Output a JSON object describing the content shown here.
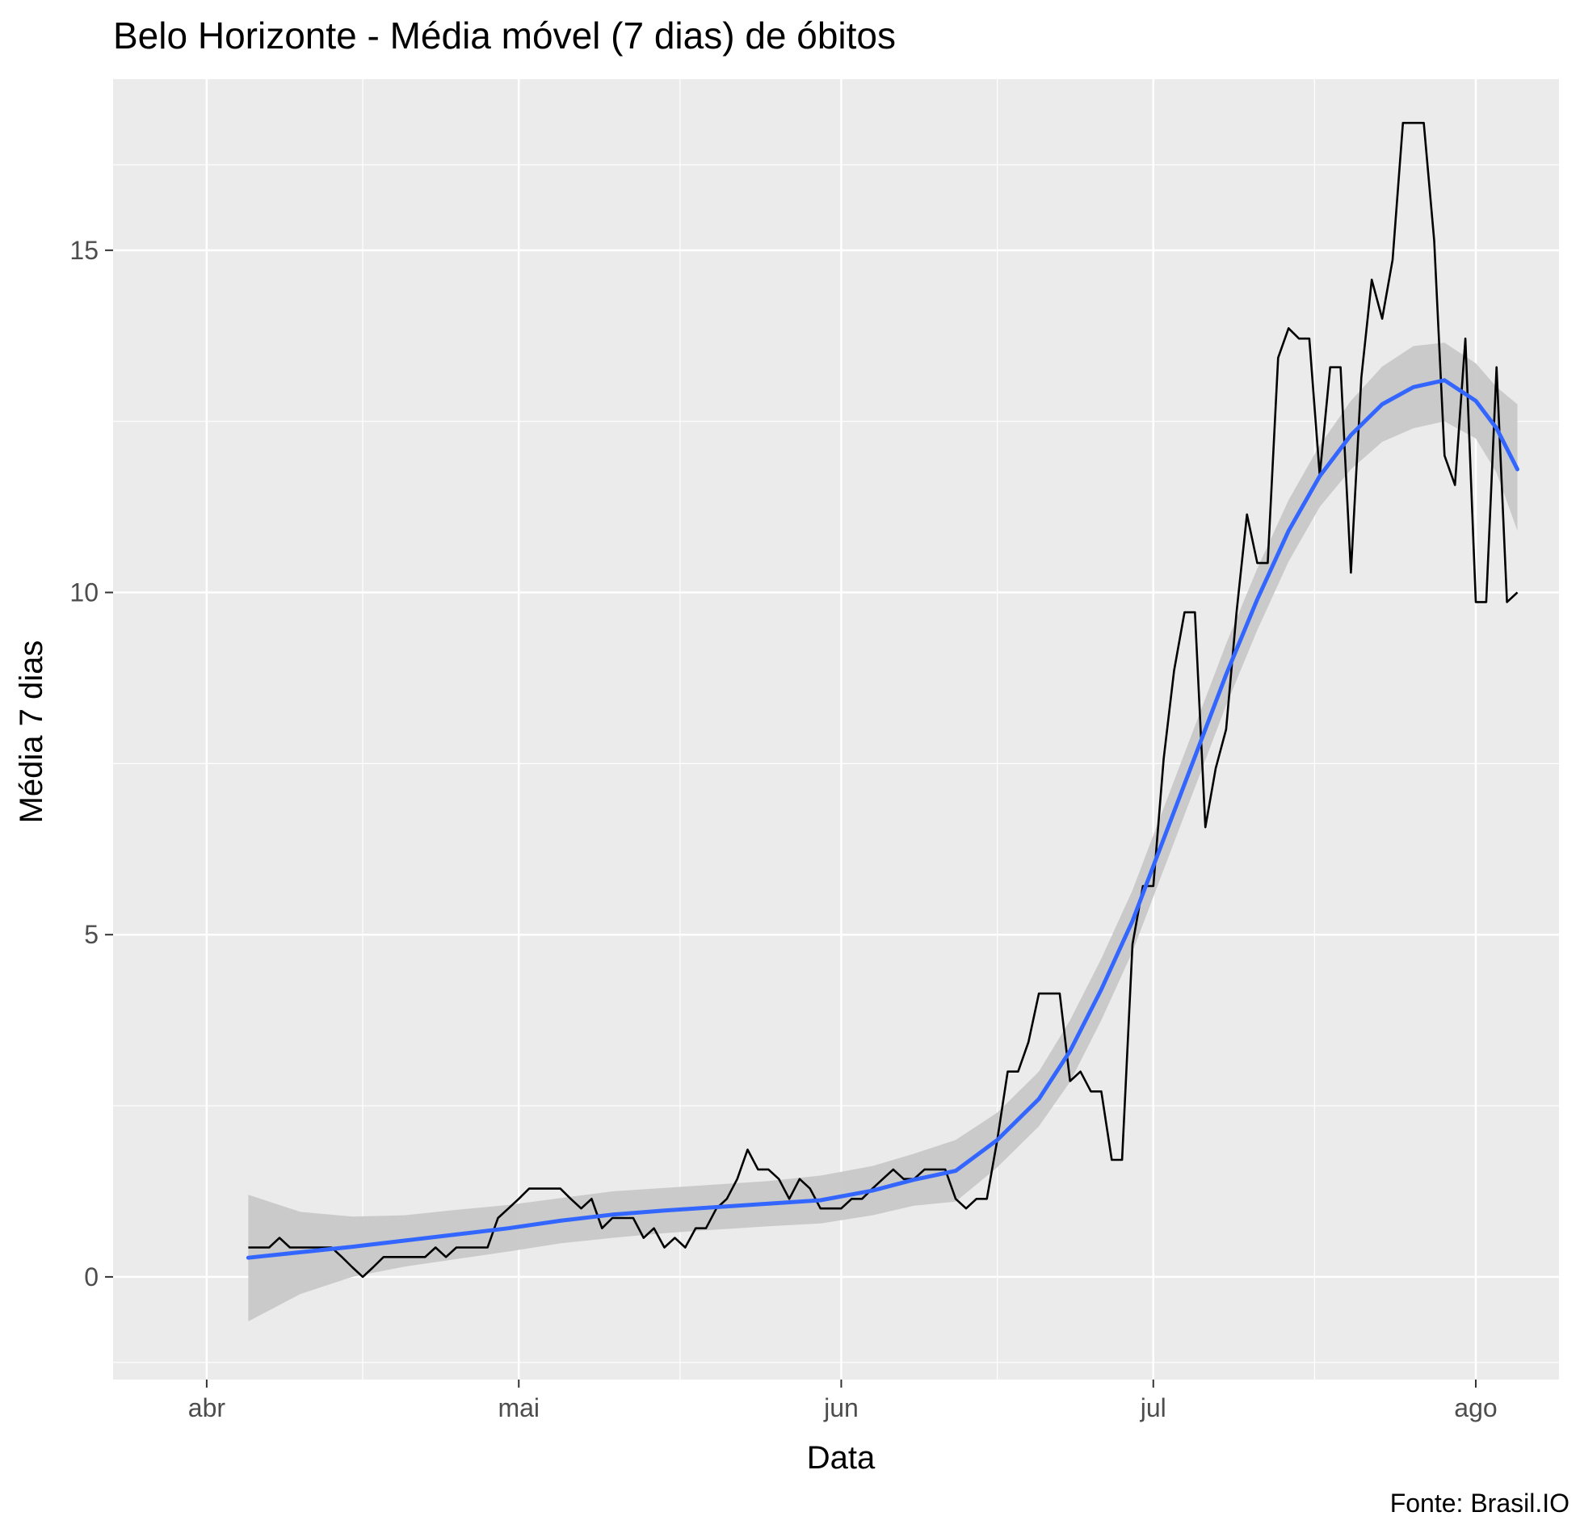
{
  "chart_data": {
    "type": "line",
    "title": "Belo Horizonte - Média móvel (7 dias) de óbitos",
    "xlabel": "Data",
    "ylabel": "Média 7 dias",
    "caption": "Fonte: Brasil.IO",
    "x_ticks": [
      {
        "date": "2020-04-01",
        "label": "abr"
      },
      {
        "date": "2020-05-01",
        "label": "mai"
      },
      {
        "date": "2020-06-01",
        "label": "jun"
      },
      {
        "date": "2020-07-01",
        "label": "jul"
      },
      {
        "date": "2020-08-01",
        "label": "ago"
      }
    ],
    "y_ticks": [
      0,
      5,
      10,
      15
    ],
    "xlim": [
      "2020-03-23",
      "2020-08-09"
    ],
    "ylim": [
      -1.5,
      17.5
    ],
    "grid": true,
    "colors": {
      "panel_background": "#EBEBEB",
      "grid": "#FFFFFF",
      "series_line": "#000000",
      "smooth_line": "#3366FF",
      "ribbon": "#C8C8C8"
    },
    "series": [
      {
        "name": "",
        "points": [
          [
            "2020-04-05",
            0.43
          ],
          [
            "2020-04-06",
            0.43
          ],
          [
            "2020-04-07",
            0.43
          ],
          [
            "2020-04-08",
            0.57
          ],
          [
            "2020-04-09",
            0.43
          ],
          [
            "2020-04-10",
            0.43
          ],
          [
            "2020-04-11",
            0.43
          ],
          [
            "2020-04-12",
            0.43
          ],
          [
            "2020-04-13",
            0.43
          ],
          [
            "2020-04-14",
            0.29
          ],
          [
            "2020-04-15",
            0.14
          ],
          [
            "2020-04-16",
            0.0
          ],
          [
            "2020-04-17",
            0.14
          ],
          [
            "2020-04-18",
            0.29
          ],
          [
            "2020-04-19",
            0.29
          ],
          [
            "2020-04-20",
            0.29
          ],
          [
            "2020-04-21",
            0.29
          ],
          [
            "2020-04-22",
            0.29
          ],
          [
            "2020-04-23",
            0.43
          ],
          [
            "2020-04-24",
            0.29
          ],
          [
            "2020-04-25",
            0.43
          ],
          [
            "2020-04-26",
            0.43
          ],
          [
            "2020-04-27",
            0.43
          ],
          [
            "2020-04-28",
            0.43
          ],
          [
            "2020-04-29",
            0.86
          ],
          [
            "2020-04-30",
            1.0
          ],
          [
            "2020-05-01",
            1.14
          ],
          [
            "2020-05-02",
            1.29
          ],
          [
            "2020-05-03",
            1.29
          ],
          [
            "2020-05-04",
            1.29
          ],
          [
            "2020-05-05",
            1.29
          ],
          [
            "2020-05-06",
            1.14
          ],
          [
            "2020-05-07",
            1.0
          ],
          [
            "2020-05-08",
            1.14
          ],
          [
            "2020-05-09",
            0.71
          ],
          [
            "2020-05-10",
            0.86
          ],
          [
            "2020-05-11",
            0.86
          ],
          [
            "2020-05-12",
            0.86
          ],
          [
            "2020-05-13",
            0.57
          ],
          [
            "2020-05-14",
            0.71
          ],
          [
            "2020-05-15",
            0.43
          ],
          [
            "2020-05-16",
            0.57
          ],
          [
            "2020-05-17",
            0.43
          ],
          [
            "2020-05-18",
            0.71
          ],
          [
            "2020-05-19",
            0.71
          ],
          [
            "2020-05-20",
            1.0
          ],
          [
            "2020-05-21",
            1.14
          ],
          [
            "2020-05-22",
            1.43
          ],
          [
            "2020-05-23",
            1.86
          ],
          [
            "2020-05-24",
            1.57
          ],
          [
            "2020-05-25",
            1.57
          ],
          [
            "2020-05-26",
            1.43
          ],
          [
            "2020-05-27",
            1.14
          ],
          [
            "2020-05-28",
            1.43
          ],
          [
            "2020-05-29",
            1.29
          ],
          [
            "2020-05-30",
            1.0
          ],
          [
            "2020-05-31",
            1.0
          ],
          [
            "2020-06-01",
            1.0
          ],
          [
            "2020-06-02",
            1.14
          ],
          [
            "2020-06-03",
            1.14
          ],
          [
            "2020-06-04",
            1.29
          ],
          [
            "2020-06-05",
            1.43
          ],
          [
            "2020-06-06",
            1.57
          ],
          [
            "2020-06-07",
            1.43
          ],
          [
            "2020-06-08",
            1.43
          ],
          [
            "2020-06-09",
            1.57
          ],
          [
            "2020-06-10",
            1.57
          ],
          [
            "2020-06-11",
            1.57
          ],
          [
            "2020-06-12",
            1.14
          ],
          [
            "2020-06-13",
            1.0
          ],
          [
            "2020-06-14",
            1.14
          ],
          [
            "2020-06-15",
            1.14
          ],
          [
            "2020-06-16",
            2.0
          ],
          [
            "2020-06-17",
            3.0
          ],
          [
            "2020-06-18",
            3.0
          ],
          [
            "2020-06-19",
            3.43
          ],
          [
            "2020-06-20",
            4.14
          ],
          [
            "2020-06-21",
            4.14
          ],
          [
            "2020-06-22",
            4.14
          ],
          [
            "2020-06-23",
            2.86
          ],
          [
            "2020-06-24",
            3.0
          ],
          [
            "2020-06-25",
            2.71
          ],
          [
            "2020-06-26",
            2.71
          ],
          [
            "2020-06-27",
            1.71
          ],
          [
            "2020-06-28",
            1.71
          ],
          [
            "2020-06-29",
            4.86
          ],
          [
            "2020-06-30",
            5.71
          ],
          [
            "2020-07-01",
            5.71
          ],
          [
            "2020-07-02",
            7.57
          ],
          [
            "2020-07-03",
            8.86
          ],
          [
            "2020-07-04",
            9.71
          ],
          [
            "2020-07-05",
            9.71
          ],
          [
            "2020-07-06",
            6.57
          ],
          [
            "2020-07-07",
            7.43
          ],
          [
            "2020-07-08",
            8.0
          ],
          [
            "2020-07-09",
            9.71
          ],
          [
            "2020-07-10",
            11.14
          ],
          [
            "2020-07-11",
            10.43
          ],
          [
            "2020-07-12",
            10.43
          ],
          [
            "2020-07-13",
            13.43
          ],
          [
            "2020-07-14",
            13.86
          ],
          [
            "2020-07-15",
            13.71
          ],
          [
            "2020-07-16",
            13.71
          ],
          [
            "2020-07-17",
            11.71
          ],
          [
            "2020-07-18",
            13.29
          ],
          [
            "2020-07-19",
            13.29
          ],
          [
            "2020-07-20",
            10.29
          ],
          [
            "2020-07-21",
            13.14
          ],
          [
            "2020-07-22",
            14.57
          ],
          [
            "2020-07-23",
            14.0
          ],
          [
            "2020-07-24",
            14.86
          ],
          [
            "2020-07-25",
            16.86
          ],
          [
            "2020-07-26",
            16.86
          ],
          [
            "2020-07-27",
            16.86
          ],
          [
            "2020-07-28",
            15.14
          ],
          [
            "2020-07-29",
            12.0
          ],
          [
            "2020-07-30",
            11.57
          ],
          [
            "2020-07-31",
            13.71
          ],
          [
            "2020-08-01",
            9.86
          ],
          [
            "2020-08-02",
            9.86
          ],
          [
            "2020-08-03",
            13.29
          ],
          [
            "2020-08-04",
            9.86
          ],
          [
            "2020-08-05",
            10.0
          ]
        ]
      }
    ],
    "smooth": {
      "points": [
        [
          "2020-04-05",
          0.28
        ],
        [
          "2020-04-10",
          0.36
        ],
        [
          "2020-04-15",
          0.44
        ],
        [
          "2020-04-20",
          0.53
        ],
        [
          "2020-04-25",
          0.62
        ],
        [
          "2020-04-30",
          0.71
        ],
        [
          "2020-05-05",
          0.82
        ],
        [
          "2020-05-10",
          0.91
        ],
        [
          "2020-05-15",
          0.97
        ],
        [
          "2020-05-20",
          1.02
        ],
        [
          "2020-05-25",
          1.07
        ],
        [
          "2020-05-30",
          1.12
        ],
        [
          "2020-06-04",
          1.26
        ],
        [
          "2020-06-08",
          1.42
        ],
        [
          "2020-06-12",
          1.55
        ],
        [
          "2020-06-16",
          2.0
        ],
        [
          "2020-06-20",
          2.6
        ],
        [
          "2020-06-23",
          3.3
        ],
        [
          "2020-06-26",
          4.2
        ],
        [
          "2020-06-29",
          5.2
        ],
        [
          "2020-07-02",
          6.4
        ],
        [
          "2020-07-05",
          7.6
        ],
        [
          "2020-07-08",
          8.8
        ],
        [
          "2020-07-11",
          9.9
        ],
        [
          "2020-07-14",
          10.9
        ],
        [
          "2020-07-17",
          11.7
        ],
        [
          "2020-07-20",
          12.3
        ],
        [
          "2020-07-23",
          12.75
        ],
        [
          "2020-07-26",
          13.0
        ],
        [
          "2020-07-29",
          13.1
        ],
        [
          "2020-08-01",
          12.8
        ],
        [
          "2020-08-03",
          12.4
        ],
        [
          "2020-08-05",
          11.8
        ]
      ],
      "ribbon_upper": [
        [
          "2020-04-05",
          1.2
        ],
        [
          "2020-04-10",
          0.95
        ],
        [
          "2020-04-15",
          0.88
        ],
        [
          "2020-04-20",
          0.9
        ],
        [
          "2020-04-25",
          0.98
        ],
        [
          "2020-04-30",
          1.05
        ],
        [
          "2020-05-05",
          1.15
        ],
        [
          "2020-05-10",
          1.25
        ],
        [
          "2020-05-15",
          1.3
        ],
        [
          "2020-05-20",
          1.35
        ],
        [
          "2020-05-25",
          1.4
        ],
        [
          "2020-05-30",
          1.48
        ],
        [
          "2020-06-04",
          1.62
        ],
        [
          "2020-06-08",
          1.8
        ],
        [
          "2020-06-12",
          2.0
        ],
        [
          "2020-06-16",
          2.4
        ],
        [
          "2020-06-20",
          3.0
        ],
        [
          "2020-06-23",
          3.75
        ],
        [
          "2020-06-26",
          4.65
        ],
        [
          "2020-06-29",
          5.65
        ],
        [
          "2020-07-02",
          6.85
        ],
        [
          "2020-07-05",
          8.05
        ],
        [
          "2020-07-08",
          9.25
        ],
        [
          "2020-07-11",
          10.35
        ],
        [
          "2020-07-14",
          11.35
        ],
        [
          "2020-07-17",
          12.15
        ],
        [
          "2020-07-20",
          12.8
        ],
        [
          "2020-07-23",
          13.3
        ],
        [
          "2020-07-26",
          13.6
        ],
        [
          "2020-07-29",
          13.65
        ],
        [
          "2020-08-01",
          13.35
        ],
        [
          "2020-08-03",
          13.0
        ],
        [
          "2020-08-05",
          12.75
        ]
      ],
      "ribbon_lower": [
        [
          "2020-04-05",
          -0.65
        ],
        [
          "2020-04-10",
          -0.25
        ],
        [
          "2020-04-15",
          0.0
        ],
        [
          "2020-04-20",
          0.15
        ],
        [
          "2020-04-25",
          0.26
        ],
        [
          "2020-04-30",
          0.37
        ],
        [
          "2020-05-05",
          0.49
        ],
        [
          "2020-05-10",
          0.57
        ],
        [
          "2020-05-15",
          0.64
        ],
        [
          "2020-05-20",
          0.69
        ],
        [
          "2020-05-25",
          0.74
        ],
        [
          "2020-05-30",
          0.78
        ],
        [
          "2020-06-04",
          0.9
        ],
        [
          "2020-06-08",
          1.04
        ],
        [
          "2020-06-12",
          1.1
        ],
        [
          "2020-06-16",
          1.6
        ],
        [
          "2020-06-20",
          2.2
        ],
        [
          "2020-06-23",
          2.85
        ],
        [
          "2020-06-26",
          3.75
        ],
        [
          "2020-06-29",
          4.75
        ],
        [
          "2020-07-02",
          5.95
        ],
        [
          "2020-07-05",
          7.15
        ],
        [
          "2020-07-08",
          8.35
        ],
        [
          "2020-07-11",
          9.45
        ],
        [
          "2020-07-14",
          10.45
        ],
        [
          "2020-07-17",
          11.25
        ],
        [
          "2020-07-20",
          11.8
        ],
        [
          "2020-07-23",
          12.2
        ],
        [
          "2020-07-26",
          12.4
        ],
        [
          "2020-07-29",
          12.5
        ],
        [
          "2020-08-01",
          12.25
        ],
        [
          "2020-08-03",
          11.75
        ],
        [
          "2020-08-05",
          10.9
        ]
      ]
    }
  }
}
